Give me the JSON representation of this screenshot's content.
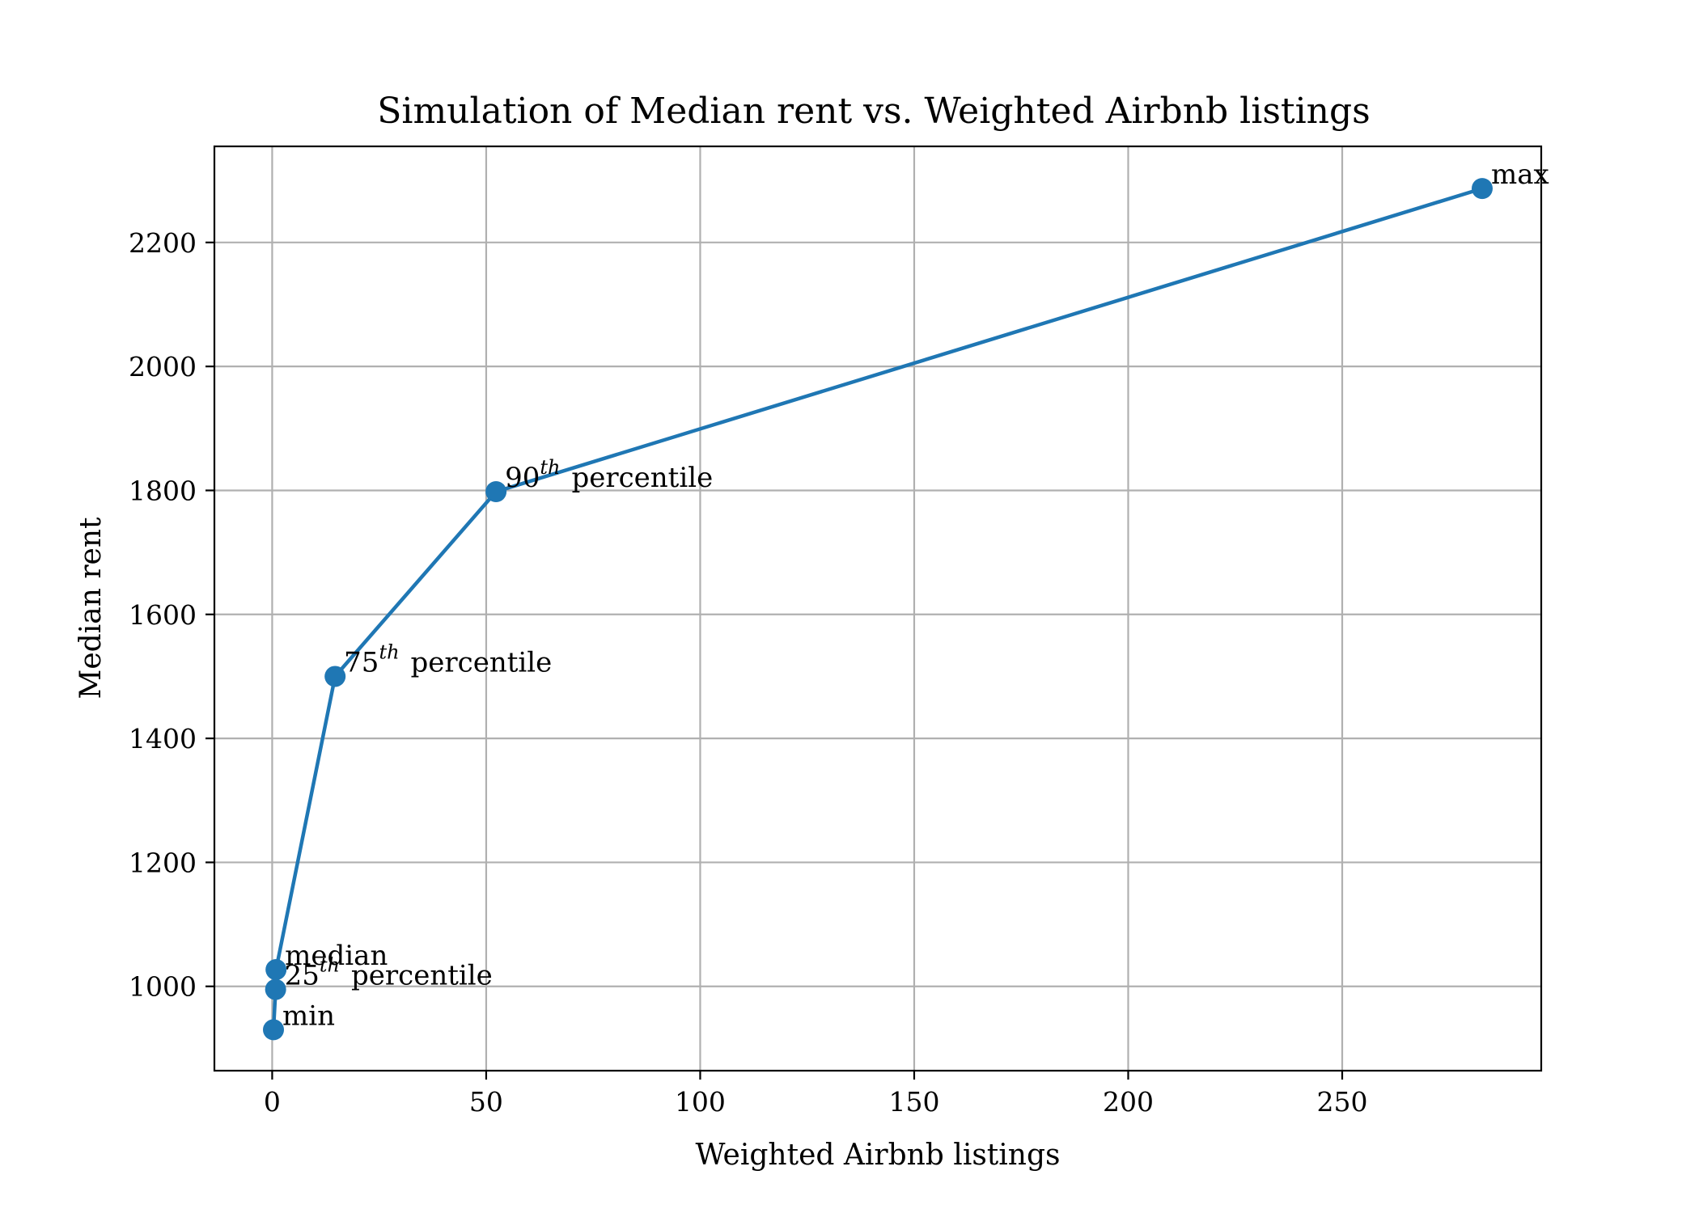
{
  "chart_data": {
    "type": "line",
    "title": "Simulation of Median rent vs. Weighted Airbnb listings",
    "xlabel": "Weighted Airbnb listings",
    "ylabel": "Median rent",
    "xlim": [
      -13.5,
      296.5
    ],
    "ylim": [
      864,
      2355
    ],
    "xticks": [
      0,
      50,
      100,
      150,
      200,
      250
    ],
    "yticks": [
      1000,
      1200,
      1400,
      1600,
      1800,
      2000,
      2200
    ],
    "grid": true,
    "series": [
      {
        "color": "#1f77b4",
        "marker": "circle",
        "points": [
          {
            "x": 0.3,
            "y": 930,
            "label": "min",
            "label_sup": ""
          },
          {
            "x": 0.8,
            "y": 995,
            "label": "25",
            "label_sup": "th",
            "label_suffix": "percentile"
          },
          {
            "x": 0.9,
            "y": 1027,
            "label": "median",
            "label_sup": ""
          },
          {
            "x": 14.7,
            "y": 1500,
            "label": "75",
            "label_sup": "th",
            "label_suffix": "percentile"
          },
          {
            "x": 52.3,
            "y": 1798,
            "label": "90",
            "label_sup": "th",
            "label_suffix": "percentile"
          },
          {
            "x": 282.7,
            "y": 2287,
            "label": "max",
            "label_sup": ""
          }
        ]
      }
    ]
  }
}
